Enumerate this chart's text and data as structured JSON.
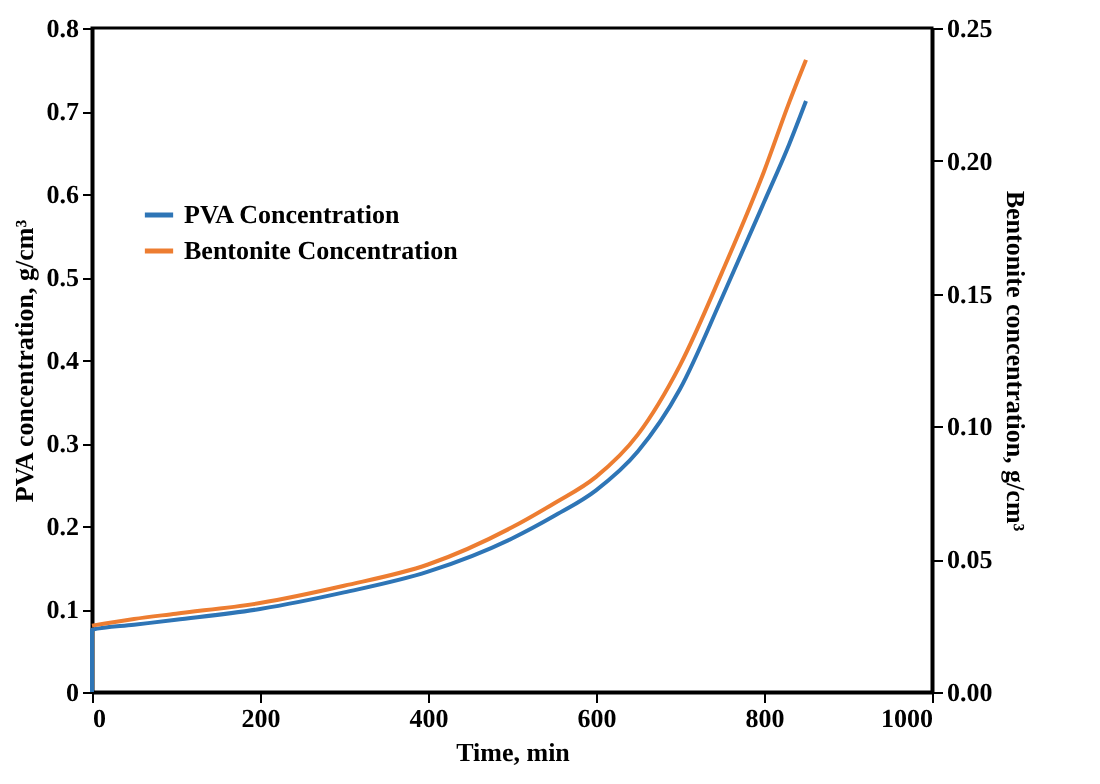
{
  "chart_data": {
    "type": "line",
    "xlabel": "Time, min",
    "ylabel": "PVA concentration, g/cm³",
    "y2label": "Bentonite concentration, g/cm³",
    "series": [
      {
        "name": "PVA Concentration",
        "color": "#2e75b6",
        "axis": "y",
        "x": [
          0,
          0,
          50,
          100,
          200,
          300,
          400,
          500,
          550,
          600,
          650,
          700,
          750,
          800,
          830,
          850
        ],
        "values": [
          0,
          0.075,
          0.081,
          0.087,
          0.1,
          0.12,
          0.145,
          0.185,
          0.212,
          0.243,
          0.29,
          0.365,
          0.475,
          0.59,
          0.66,
          0.712
        ]
      },
      {
        "name": "Bentonite Concentration",
        "color": "#ed7d31",
        "axis": "y2",
        "x": [
          0,
          50,
          100,
          200,
          300,
          400,
          500,
          550,
          600,
          650,
          700,
          750,
          800,
          830,
          850
        ],
        "values": [
          0.025,
          0.0275,
          0.0295,
          0.0335,
          0.04,
          0.048,
          0.062,
          0.071,
          0.081,
          0.097,
          0.123,
          0.158,
          0.196,
          0.222,
          0.238
        ]
      }
    ],
    "xlim": [
      0,
      1000
    ],
    "xticks": [
      0,
      200,
      400,
      600,
      800,
      1000
    ],
    "ylim": [
      0,
      0.8
    ],
    "yticks": [
      0,
      0.1,
      0.2,
      0.3,
      0.4,
      0.5,
      0.6,
      0.7,
      0.8
    ],
    "y2lim": [
      0,
      0.25
    ],
    "y2ticks": [
      {
        "value": 0,
        "label": "0.00"
      },
      {
        "value": 0.05,
        "label": "0.05"
      },
      {
        "value": 0.1,
        "label": "0.10"
      },
      {
        "value": 0.15,
        "label": "0.15"
      },
      {
        "value": 0.2,
        "label": "0.20"
      },
      {
        "value": 0.25,
        "label": "0.25"
      }
    ],
    "legend": "top left",
    "grid": false,
    "marker": "none",
    "line_style": "solid"
  }
}
